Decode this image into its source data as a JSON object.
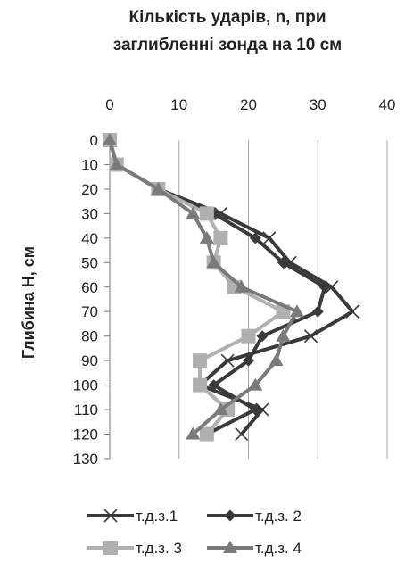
{
  "chart_data": {
    "type": "line",
    "title_lines": [
      "Кількість ударів, n, при",
      "заглибленні зонда на 10 см"
    ],
    "xlabel": "",
    "ylabel": "Глибина H, см",
    "x_axis_position": "top",
    "y_axis_inverted": true,
    "xlim": [
      0,
      40
    ],
    "ylim": [
      0,
      130
    ],
    "x_ticks": [
      "0",
      "10",
      "20",
      "30",
      "40"
    ],
    "y_ticks": [
      "0",
      "10",
      "20",
      "30",
      "40",
      "50",
      "60",
      "70",
      "80",
      "90",
      "100",
      "110",
      "120",
      "130"
    ],
    "grid": "vertical",
    "legend_position": "bottom",
    "series": [
      {
        "name": "т.д.з.1",
        "color": "#3a3a3a",
        "marker": "x",
        "points": [
          [
            0,
            0
          ],
          [
            1,
            10
          ],
          [
            7,
            20
          ],
          [
            16,
            30
          ],
          [
            23,
            40
          ],
          [
            26,
            50
          ],
          [
            32,
            60
          ],
          [
            35,
            70
          ],
          [
            29,
            80
          ],
          [
            17,
            90
          ],
          [
            13,
            100
          ],
          [
            22,
            110
          ],
          [
            19,
            120
          ]
        ]
      },
      {
        "name": "т.д.з. 2",
        "color": "#3a3a3a",
        "marker": "diamond",
        "points": [
          [
            0,
            0
          ],
          [
            1,
            10
          ],
          [
            7,
            20
          ],
          [
            15,
            30
          ],
          [
            21,
            40
          ],
          [
            25,
            50
          ],
          [
            31,
            60
          ],
          [
            30,
            70
          ],
          [
            22,
            80
          ],
          [
            20,
            90
          ],
          [
            15,
            100
          ],
          [
            21,
            110
          ],
          [
            14,
            120
          ]
        ]
      },
      {
        "name": "т.д.з. 3",
        "color": "#b0b0b0",
        "marker": "square",
        "points": [
          [
            0,
            0
          ],
          [
            1,
            10
          ],
          [
            7,
            20
          ],
          [
            14,
            30
          ],
          [
            16,
            40
          ],
          [
            15,
            50
          ],
          [
            18,
            60
          ],
          [
            25,
            70
          ],
          [
            20,
            80
          ],
          [
            13,
            90
          ],
          [
            13,
            100
          ],
          [
            17,
            110
          ],
          [
            14,
            120
          ]
        ]
      },
      {
        "name": "т.д.з. 4",
        "color": "#7a7a7a",
        "marker": "triangle",
        "points": [
          [
            0,
            0
          ],
          [
            1,
            10
          ],
          [
            7,
            20
          ],
          [
            12,
            30
          ],
          [
            14,
            40
          ],
          [
            15,
            50
          ],
          [
            19,
            60
          ],
          [
            27,
            70
          ],
          [
            25,
            80
          ],
          [
            24,
            90
          ],
          [
            21,
            100
          ],
          [
            16,
            110
          ],
          [
            12,
            120
          ]
        ]
      }
    ]
  }
}
